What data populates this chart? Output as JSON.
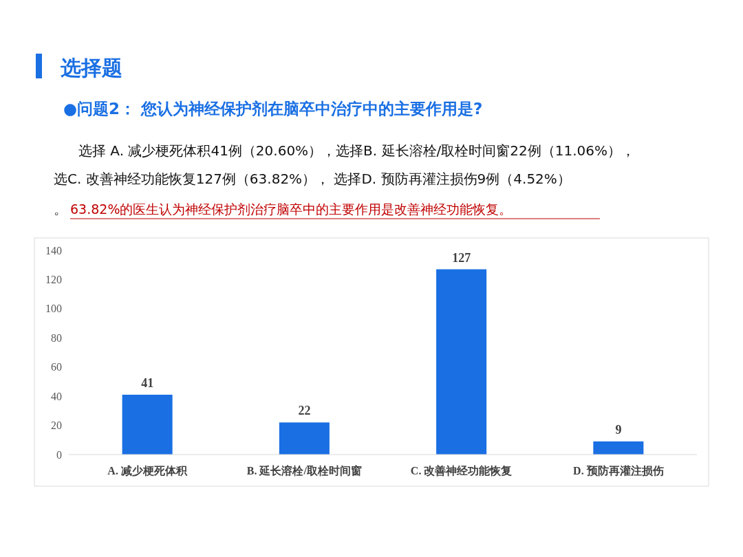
{
  "chart_data": {
    "type": "bar",
    "title": "选择题",
    "subtitle": "●问题2：  您认为神经保护剂在脑卒中治疗中的主要作用是?",
    "annotations": [
      "选择 A. 减少梗死体积41例（20.60%），选择B. 延长溶栓/取栓时间窗22例（11.06%），",
      "选C. 改善神经功能恢复127例（63.82%）， 选择D. 预防再灌注损伤9例（4.52%）",
      "。",
      "63.82%的医生认为神经保护剂治疗脑卒中的主要作用是改善神经功能恢复。"
    ],
    "categories": [
      "A. 减少梗死体积",
      "B. 延长溶栓/取栓时间窗",
      "C. 改善神经功能恢复",
      "D. 预防再灌注损伤"
    ],
    "values": [
      41,
      22,
      127,
      9
    ],
    "color": "#1a6fe3",
    "ylim": [
      0,
      140
    ],
    "yticks": [
      0,
      20,
      40,
      60,
      80,
      100,
      120,
      140
    ],
    "data_labels": true
  }
}
